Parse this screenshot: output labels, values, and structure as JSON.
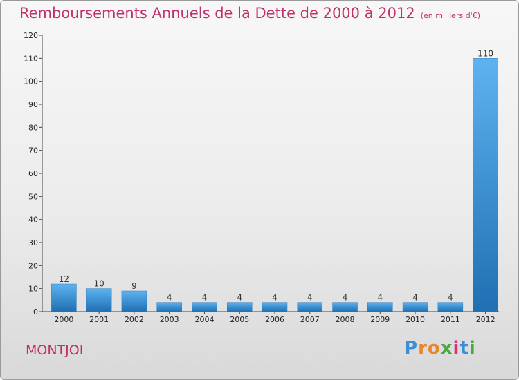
{
  "title": "Remboursements Annuels de la Dette de 2000 à 2012",
  "unit_note": "(en milliers d'€)",
  "commune": "MONTJOI",
  "logo": {
    "letters": [
      "P",
      "r",
      "o",
      "x",
      "i",
      "t",
      "i"
    ],
    "colors": [
      "#3b8fd8",
      "#e8862a",
      "#e8862a",
      "#4aa83e",
      "#d8337a",
      "#3b8fd8",
      "#4aa83e"
    ]
  },
  "colors": {
    "title": "#c0306a",
    "bar_top": "#5db3ef",
    "bar_bottom": "#1f6fb2"
  },
  "chart_data": {
    "type": "bar",
    "categories": [
      "2000",
      "2001",
      "2002",
      "2003",
      "2004",
      "2005",
      "2006",
      "2007",
      "2008",
      "2009",
      "2010",
      "2011",
      "2012"
    ],
    "values": [
      12,
      10,
      9,
      4,
      4,
      4,
      4,
      4,
      4,
      4,
      4,
      4,
      110
    ],
    "title": "Remboursements Annuels de la Dette de 2000 à 2012",
    "ylim": [
      0,
      120
    ],
    "yticks": [
      0,
      10,
      20,
      30,
      40,
      50,
      60,
      70,
      80,
      90,
      100,
      110,
      120
    ],
    "grid": false,
    "legend": "none"
  }
}
